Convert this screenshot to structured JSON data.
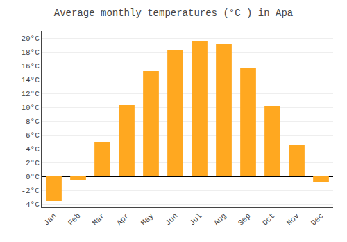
{
  "chart_data": {
    "type": "bar",
    "title": "Average monthly temperatures (°C ) in Apa",
    "categories": [
      "Jan",
      "Feb",
      "Mar",
      "Apr",
      "May",
      "Jun",
      "Jul",
      "Aug",
      "Sep",
      "Oct",
      "Nov",
      "Dec"
    ],
    "values": [
      -3.5,
      -0.5,
      5.0,
      10.3,
      15.3,
      18.2,
      19.5,
      19.2,
      15.6,
      10.1,
      4.6,
      -0.8
    ],
    "color": "#FFA820",
    "ylim": [
      -4.5,
      21
    ],
    "yticks": [
      {
        "value": -4,
        "label": "-4°C"
      },
      {
        "value": -2,
        "label": "-2°C"
      },
      {
        "value": 0,
        "label": "0°C"
      },
      {
        "value": 2,
        "label": "2°C"
      },
      {
        "value": 4,
        "label": "4°C"
      },
      {
        "value": 6,
        "label": "6°C"
      },
      {
        "value": 8,
        "label": "8°C"
      },
      {
        "value": 10,
        "label": "10°C"
      },
      {
        "value": 12,
        "label": "12°C"
      },
      {
        "value": 14,
        "label": "14°C"
      },
      {
        "value": 16,
        "label": "16°C"
      },
      {
        "value": 18,
        "label": "18°C"
      },
      {
        "value": 20,
        "label": "20°C"
      }
    ],
    "grid": true
  }
}
